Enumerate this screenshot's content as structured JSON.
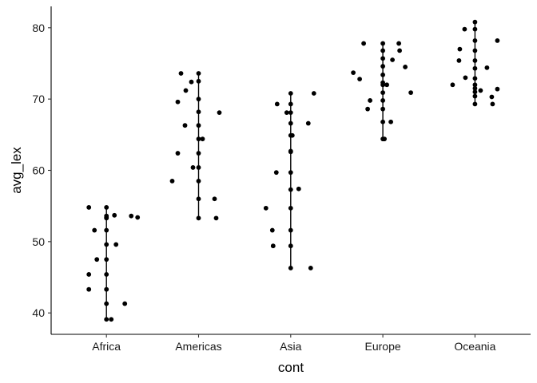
{
  "chart_data": {
    "type": "scatter",
    "xlabel": "cont",
    "ylabel": "avg_lex",
    "categories": [
      "Africa",
      "Americas",
      "Asia",
      "Europe",
      "Oceania"
    ],
    "ylim": [
      37,
      83
    ],
    "yticks": [
      40,
      50,
      60,
      70,
      80
    ],
    "grid": false,
    "legend": "none",
    "point_color": "#000000",
    "groups": [
      {
        "category": "Africa",
        "range": [
          39.1,
          54.8
        ],
        "points": [
          {
            "jitter": -0.22,
            "y": 54.8
          },
          {
            "jitter": 0.0,
            "y": 54.8
          },
          {
            "jitter": -0.15,
            "y": 51.6
          },
          {
            "jitter": 0.0,
            "y": 53.6
          },
          {
            "jitter": 0.0,
            "y": 53.3
          },
          {
            "jitter": 0.0,
            "y": 53.4
          },
          {
            "jitter": 0.1,
            "y": 53.7
          },
          {
            "jitter": 0.31,
            "y": 53.6
          },
          {
            "jitter": 0.39,
            "y": 53.4
          },
          {
            "jitter": 0.0,
            "y": 51.6
          },
          {
            "jitter": 0.12,
            "y": 49.6
          },
          {
            "jitter": 0.0,
            "y": 49.6
          },
          {
            "jitter": -0.12,
            "y": 47.5
          },
          {
            "jitter": 0.0,
            "y": 47.5
          },
          {
            "jitter": -0.22,
            "y": 45.4
          },
          {
            "jitter": 0.0,
            "y": 45.4
          },
          {
            "jitter": -0.22,
            "y": 43.3
          },
          {
            "jitter": 0.0,
            "y": 43.3
          },
          {
            "jitter": 0.0,
            "y": 41.3
          },
          {
            "jitter": 0.23,
            "y": 41.3
          },
          {
            "jitter": 0.0,
            "y": 39.1
          },
          {
            "jitter": 0.06,
            "y": 39.1
          }
        ]
      },
      {
        "category": "Americas",
        "range": [
          53.3,
          73.6
        ],
        "points": [
          {
            "jitter": -0.22,
            "y": 73.6
          },
          {
            "jitter": 0.0,
            "y": 73.6
          },
          {
            "jitter": -0.09,
            "y": 72.4
          },
          {
            "jitter": 0.0,
            "y": 72.5
          },
          {
            "jitter": -0.16,
            "y": 71.2
          },
          {
            "jitter": 0.0,
            "y": 70.0
          },
          {
            "jitter": -0.26,
            "y": 69.6
          },
          {
            "jitter": 0.26,
            "y": 68.1
          },
          {
            "jitter": 0.0,
            "y": 68.2
          },
          {
            "jitter": -0.17,
            "y": 66.3
          },
          {
            "jitter": 0.0,
            "y": 66.3
          },
          {
            "jitter": 0.0,
            "y": 64.4
          },
          {
            "jitter": 0.05,
            "y": 64.4
          },
          {
            "jitter": -0.26,
            "y": 62.4
          },
          {
            "jitter": 0.0,
            "y": 62.4
          },
          {
            "jitter": -0.07,
            "y": 60.4
          },
          {
            "jitter": 0.0,
            "y": 60.4
          },
          {
            "jitter": -0.33,
            "y": 58.5
          },
          {
            "jitter": 0.0,
            "y": 58.5
          },
          {
            "jitter": 0.0,
            "y": 56.0
          },
          {
            "jitter": 0.2,
            "y": 56.0
          },
          {
            "jitter": 0.0,
            "y": 53.3
          },
          {
            "jitter": 0.22,
            "y": 53.3
          }
        ]
      },
      {
        "category": "Asia",
        "range": [
          46.3,
          70.8
        ],
        "points": [
          {
            "jitter": 0.0,
            "y": 70.8
          },
          {
            "jitter": 0.29,
            "y": 70.8
          },
          {
            "jitter": -0.17,
            "y": 69.3
          },
          {
            "jitter": 0.0,
            "y": 69.3
          },
          {
            "jitter": -0.05,
            "y": 68.1
          },
          {
            "jitter": 0.0,
            "y": 68.1
          },
          {
            "jitter": 0.0,
            "y": 66.6
          },
          {
            "jitter": 0.22,
            "y": 66.6
          },
          {
            "jitter": 0.0,
            "y": 64.9
          },
          {
            "jitter": 0.02,
            "y": 64.9
          },
          {
            "jitter": 0.0,
            "y": 62.7
          },
          {
            "jitter": 0.0,
            "y": 62.6
          },
          {
            "jitter": -0.18,
            "y": 59.7
          },
          {
            "jitter": 0.0,
            "y": 59.7
          },
          {
            "jitter": 0.0,
            "y": 57.3
          },
          {
            "jitter": 0.1,
            "y": 57.4
          },
          {
            "jitter": 0.0,
            "y": 54.7
          },
          {
            "jitter": -0.31,
            "y": 54.7
          },
          {
            "jitter": -0.23,
            "y": 51.6
          },
          {
            "jitter": 0.0,
            "y": 51.6
          },
          {
            "jitter": 0.0,
            "y": 49.4
          },
          {
            "jitter": -0.22,
            "y": 49.4
          },
          {
            "jitter": 0.0,
            "y": 46.3
          },
          {
            "jitter": 0.25,
            "y": 46.3
          }
        ]
      },
      {
        "category": "Europe",
        "range": [
          64.4,
          77.8
        ],
        "points": [
          {
            "jitter": -0.24,
            "y": 77.8
          },
          {
            "jitter": 0.0,
            "y": 77.8
          },
          {
            "jitter": 0.2,
            "y": 77.8
          },
          {
            "jitter": 0.0,
            "y": 76.8
          },
          {
            "jitter": 0.21,
            "y": 76.8
          },
          {
            "jitter": 0.0,
            "y": 75.7
          },
          {
            "jitter": 0.12,
            "y": 75.5
          },
          {
            "jitter": 0.0,
            "y": 74.6
          },
          {
            "jitter": 0.28,
            "y": 74.5
          },
          {
            "jitter": -0.37,
            "y": 73.7
          },
          {
            "jitter": 0.0,
            "y": 73.4
          },
          {
            "jitter": -0.29,
            "y": 72.8
          },
          {
            "jitter": 0.0,
            "y": 72.3
          },
          {
            "jitter": 0.0,
            "y": 72.0
          },
          {
            "jitter": 0.05,
            "y": 72.0
          },
          {
            "jitter": 0.0,
            "y": 70.9
          },
          {
            "jitter": 0.35,
            "y": 70.9
          },
          {
            "jitter": -0.16,
            "y": 69.8
          },
          {
            "jitter": 0.0,
            "y": 69.8
          },
          {
            "jitter": -0.19,
            "y": 68.6
          },
          {
            "jitter": 0.0,
            "y": 68.6
          },
          {
            "jitter": 0.0,
            "y": 66.8
          },
          {
            "jitter": 0.1,
            "y": 66.8
          },
          {
            "jitter": 0.0,
            "y": 64.4
          },
          {
            "jitter": 0.02,
            "y": 64.4
          }
        ]
      },
      {
        "category": "Oceania",
        "range": [
          69.3,
          80.8
        ],
        "points": [
          {
            "jitter": 0.0,
            "y": 80.8
          },
          {
            "jitter": -0.13,
            "y": 79.8
          },
          {
            "jitter": 0.0,
            "y": 79.8
          },
          {
            "jitter": 0.0,
            "y": 78.2
          },
          {
            "jitter": 0.28,
            "y": 78.2
          },
          {
            "jitter": -0.19,
            "y": 77.0
          },
          {
            "jitter": 0.0,
            "y": 76.8
          },
          {
            "jitter": -0.2,
            "y": 75.4
          },
          {
            "jitter": 0.0,
            "y": 75.4
          },
          {
            "jitter": 0.15,
            "y": 74.4
          },
          {
            "jitter": 0.0,
            "y": 74.3
          },
          {
            "jitter": -0.12,
            "y": 73.0
          },
          {
            "jitter": 0.0,
            "y": 72.9
          },
          {
            "jitter": -0.28,
            "y": 72.0
          },
          {
            "jitter": 0.0,
            "y": 72.0
          },
          {
            "jitter": 0.0,
            "y": 71.5
          },
          {
            "jitter": 0.07,
            "y": 71.2
          },
          {
            "jitter": 0.28,
            "y": 71.4
          },
          {
            "jitter": 0.0,
            "y": 71.0
          },
          {
            "jitter": 0.0,
            "y": 70.4
          },
          {
            "jitter": 0.21,
            "y": 70.3
          },
          {
            "jitter": 0.0,
            "y": 69.3
          },
          {
            "jitter": 0.22,
            "y": 69.3
          }
        ]
      }
    ]
  }
}
